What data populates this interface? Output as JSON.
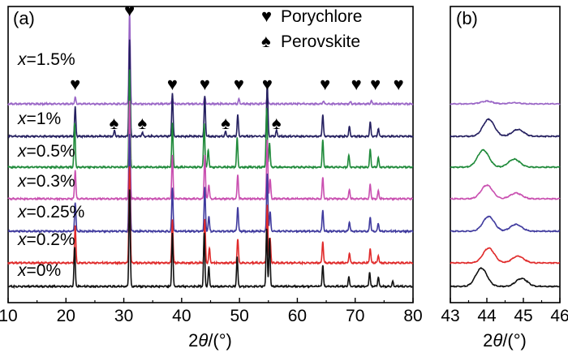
{
  "chart_data": [
    {
      "panel": "(a)",
      "type": "line",
      "xlabel": "2θ/(°)",
      "ylabel": "",
      "xlim": [
        10,
        80
      ],
      "xticks": [
        10,
        20,
        30,
        40,
        50,
        60,
        70,
        80
      ],
      "legend": [
        {
          "symbol": "♥",
          "label": "Porychlore"
        },
        {
          "symbol": "♠",
          "label": "Perovskite"
        }
      ],
      "series": [
        {
          "name": "x=1.5%",
          "var": "x",
          "eq": "=1.5%",
          "color": "#9a66c6",
          "peaks": [
            [
              21.6,
              0.07
            ],
            [
              31.0,
              1.0
            ],
            [
              38.4,
              0.07
            ],
            [
              44.0,
              0.07
            ],
            [
              49.9,
              0.05
            ],
            [
              54.8,
              0.08
            ],
            [
              64.5,
              0.03
            ],
            [
              69.2,
              0.02
            ],
            [
              72.8,
              0.03
            ]
          ]
        },
        {
          "name": "x=1%",
          "var": "x",
          "eq": "=1%",
          "color": "#252060",
          "peaks": [
            [
              21.6,
              0.3
            ],
            [
              28.4,
              0.06
            ],
            [
              31.0,
              1.0
            ],
            [
              33.2,
              0.04
            ],
            [
              38.4,
              0.45
            ],
            [
              44.0,
              0.42
            ],
            [
              47.6,
              0.05
            ],
            [
              49.7,
              0.22
            ],
            [
              54.8,
              0.55
            ],
            [
              56.4,
              0.06
            ],
            [
              64.4,
              0.22
            ],
            [
              69.0,
              0.1
            ],
            [
              72.6,
              0.15
            ],
            [
              74.0,
              0.08
            ]
          ]
        },
        {
          "name": "x=0.5%",
          "var": "x",
          "eq": "=0.5%",
          "color": "#1f8a3a",
          "peaks": [
            [
              21.5,
              0.45
            ],
            [
              31.0,
              1.0
            ],
            [
              38.4,
              0.45
            ],
            [
              43.9,
              0.45
            ],
            [
              44.6,
              0.18
            ],
            [
              49.6,
              0.3
            ],
            [
              54.7,
              0.6
            ],
            [
              55.2,
              0.25
            ],
            [
              64.4,
              0.28
            ],
            [
              68.9,
              0.12
            ],
            [
              72.6,
              0.18
            ],
            [
              74.0,
              0.1
            ]
          ]
        },
        {
          "name": "x=0.3%",
          "var": "x",
          "eq": "=0.3%",
          "color": "#c94fb0",
          "peaks": [
            [
              21.6,
              0.3
            ],
            [
              31.0,
              1.0
            ],
            [
              38.4,
              0.45
            ],
            [
              44.0,
              0.45
            ],
            [
              44.7,
              0.15
            ],
            [
              49.7,
              0.25
            ],
            [
              54.8,
              0.6
            ],
            [
              55.3,
              0.2
            ],
            [
              64.4,
              0.22
            ],
            [
              69.0,
              0.1
            ],
            [
              72.6,
              0.15
            ],
            [
              74.0,
              0.08
            ]
          ]
        },
        {
          "name": "x=0.25%",
          "var": "x",
          "eq": "=0.25%",
          "color": "#3f3a9e",
          "peaks": [
            [
              21.6,
              0.3
            ],
            [
              31.0,
              1.0
            ],
            [
              38.4,
              0.45
            ],
            [
              44.0,
              0.45
            ],
            [
              44.7,
              0.15
            ],
            [
              49.7,
              0.25
            ],
            [
              54.8,
              0.6
            ],
            [
              55.3,
              0.2
            ],
            [
              64.4,
              0.22
            ],
            [
              69.0,
              0.1
            ],
            [
              72.6,
              0.15
            ],
            [
              74.0,
              0.08
            ]
          ]
        },
        {
          "name": "x=0.2%",
          "var": "x",
          "eq": "=0.2%",
          "color": "#e02a2a",
          "peaks": [
            [
              21.6,
              0.38
            ],
            [
              31.0,
              1.0
            ],
            [
              38.4,
              0.45
            ],
            [
              44.0,
              0.45
            ],
            [
              44.8,
              0.15
            ],
            [
              49.7,
              0.25
            ],
            [
              54.8,
              0.6
            ],
            [
              55.3,
              0.25
            ],
            [
              64.4,
              0.22
            ],
            [
              69.0,
              0.1
            ],
            [
              72.6,
              0.15
            ],
            [
              74.0,
              0.08
            ]
          ]
        },
        {
          "name": "x=0%",
          "var": "x",
          "eq": "=0%",
          "color": "#111111",
          "peaks": [
            [
              21.5,
              0.4
            ],
            [
              31.0,
              1.0
            ],
            [
              38.4,
              0.55
            ],
            [
              43.9,
              0.55
            ],
            [
              44.7,
              0.2
            ],
            [
              49.6,
              0.3
            ],
            [
              54.7,
              0.6
            ],
            [
              55.2,
              0.5
            ],
            [
              64.4,
              0.22
            ],
            [
              68.9,
              0.1
            ],
            [
              72.5,
              0.15
            ],
            [
              74.0,
              0.1
            ],
            [
              76.5,
              0.05
            ]
          ]
        }
      ],
      "annotations": [
        {
          "symbol": "♥",
          "x": 31.0,
          "series": "x=1.5%",
          "note": "top"
        },
        {
          "symbol": "♥",
          "x": 21.6,
          "series": "x=1.5%"
        },
        {
          "symbol": "♥",
          "x": 38.4,
          "series": "x=1.5%"
        },
        {
          "symbol": "♥",
          "x": 44.0,
          "series": "x=1.5%"
        },
        {
          "symbol": "♥",
          "x": 49.9,
          "series": "x=1.5%"
        },
        {
          "symbol": "♥",
          "x": 54.8,
          "series": "x=1.5%"
        },
        {
          "symbol": "♥",
          "x": 64.8,
          "series": "x=1.5%"
        },
        {
          "symbol": "♥",
          "x": 70.2,
          "series": "x=1.5%"
        },
        {
          "symbol": "♥",
          "x": 73.5,
          "series": "x=1.5%"
        },
        {
          "symbol": "♥",
          "x": 77.5,
          "series": "x=1.5%"
        },
        {
          "symbol": "♠",
          "x": 28.3,
          "series": "x=1%"
        },
        {
          "symbol": "♠",
          "x": 33.2,
          "series": "x=1%"
        },
        {
          "symbol": "♠",
          "x": 47.6,
          "series": "x=1%"
        },
        {
          "symbol": "♠",
          "x": 56.4,
          "series": "x=1%"
        }
      ]
    },
    {
      "panel": "(b)",
      "type": "line",
      "xlabel": "2θ/(°)",
      "ylabel": "",
      "xlim": [
        43,
        46
      ],
      "xticks": [
        43,
        44,
        45,
        46
      ],
      "series": [
        {
          "name": "x=1.5%",
          "color": "#9a66c6",
          "peaks": [
            [
              44.0,
              0.12
            ],
            [
              44.75,
              0.05
            ]
          ]
        },
        {
          "name": "x=1%",
          "color": "#252060",
          "peaks": [
            [
              44.05,
              0.75
            ],
            [
              44.85,
              0.3
            ]
          ]
        },
        {
          "name": "x=0.5%",
          "color": "#1f8a3a",
          "peaks": [
            [
              43.9,
              0.75
            ],
            [
              44.75,
              0.35
            ]
          ]
        },
        {
          "name": "x=0.3%",
          "color": "#c94fb0",
          "peaks": [
            [
              44.0,
              0.6
            ],
            [
              44.8,
              0.25
            ]
          ]
        },
        {
          "name": "x=0.25%",
          "color": "#3f3a9e",
          "peaks": [
            [
              44.05,
              0.65
            ],
            [
              44.8,
              0.3
            ]
          ]
        },
        {
          "name": "x=0.2%",
          "color": "#e02a2a",
          "peaks": [
            [
              44.05,
              0.65
            ],
            [
              44.85,
              0.3
            ]
          ]
        },
        {
          "name": "x=0%",
          "color": "#111111",
          "peaks": [
            [
              43.85,
              0.8
            ],
            [
              44.95,
              0.35
            ]
          ]
        }
      ]
    }
  ]
}
